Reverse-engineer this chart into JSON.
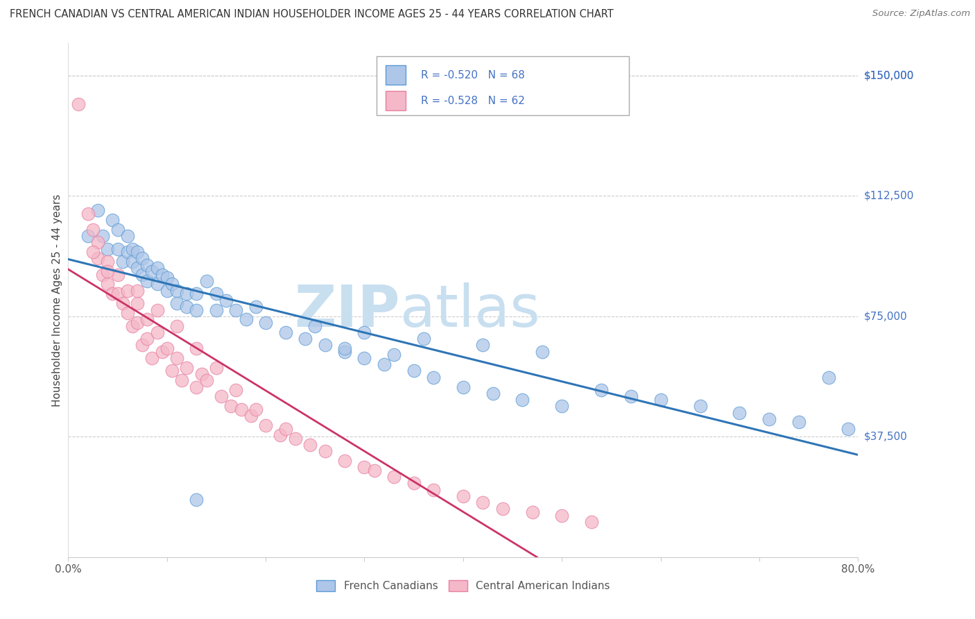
{
  "title": "FRENCH CANADIAN VS CENTRAL AMERICAN INDIAN HOUSEHOLDER INCOME AGES 25 - 44 YEARS CORRELATION CHART",
  "source": "Source: ZipAtlas.com",
  "ylabel": "Householder Income Ages 25 - 44 years",
  "xmin": 0.0,
  "xmax": 0.8,
  "ymin": 0,
  "ymax": 160000,
  "yticks": [
    37500,
    75000,
    112500,
    150000
  ],
  "ytick_labels": [
    "$37,500",
    "$75,000",
    "$112,500",
    "$150,000"
  ],
  "xtick_positions": [
    0.0,
    0.1,
    0.2,
    0.3,
    0.4,
    0.5,
    0.6,
    0.7,
    0.8
  ],
  "xtick_labels": [
    "0.0%",
    "",
    "",
    "",
    "",
    "",
    "",
    "",
    "80.0%"
  ],
  "blue_R": -0.52,
  "blue_N": 68,
  "pink_R": -0.528,
  "pink_N": 62,
  "blue_fill_color": "#aec6e8",
  "pink_fill_color": "#f4b8c8",
  "blue_edge_color": "#5b9bd5",
  "pink_edge_color": "#e87fa0",
  "blue_line_color": "#2e75b6",
  "pink_line_color": "#cc3366",
  "label_color": "#4472c4",
  "legend_label_blue": "French Canadians",
  "legend_label_pink": "Central American Indians",
  "watermark_zip_color": "#c8dff0",
  "watermark_atlas_color": "#c8dff0",
  "blue_scatter_x": [
    0.02,
    0.03,
    0.035,
    0.04,
    0.045,
    0.05,
    0.05,
    0.055,
    0.06,
    0.06,
    0.065,
    0.065,
    0.07,
    0.07,
    0.075,
    0.075,
    0.08,
    0.08,
    0.085,
    0.09,
    0.09,
    0.095,
    0.1,
    0.1,
    0.105,
    0.11,
    0.11,
    0.12,
    0.12,
    0.13,
    0.13,
    0.14,
    0.15,
    0.15,
    0.16,
    0.17,
    0.18,
    0.19,
    0.2,
    0.22,
    0.24,
    0.26,
    0.28,
    0.3,
    0.32,
    0.35,
    0.37,
    0.4,
    0.43,
    0.46,
    0.5,
    0.54,
    0.57,
    0.6,
    0.64,
    0.68,
    0.71,
    0.74,
    0.77,
    0.79,
    0.25,
    0.3,
    0.36,
    0.42,
    0.48,
    0.28,
    0.33,
    0.13
  ],
  "blue_scatter_y": [
    100000,
    108000,
    100000,
    96000,
    105000,
    102000,
    96000,
    92000,
    100000,
    95000,
    96000,
    92000,
    95000,
    90000,
    93000,
    88000,
    91000,
    86000,
    89000,
    90000,
    85000,
    88000,
    87000,
    83000,
    85000,
    83000,
    79000,
    82000,
    78000,
    82000,
    77000,
    86000,
    82000,
    77000,
    80000,
    77000,
    74000,
    78000,
    73000,
    70000,
    68000,
    66000,
    64000,
    62000,
    60000,
    58000,
    56000,
    53000,
    51000,
    49000,
    47000,
    52000,
    50000,
    49000,
    47000,
    45000,
    43000,
    42000,
    56000,
    40000,
    72000,
    70000,
    68000,
    66000,
    64000,
    65000,
    63000,
    18000
  ],
  "pink_scatter_x": [
    0.01,
    0.02,
    0.025,
    0.03,
    0.03,
    0.035,
    0.04,
    0.04,
    0.045,
    0.05,
    0.05,
    0.055,
    0.06,
    0.06,
    0.065,
    0.07,
    0.07,
    0.075,
    0.08,
    0.08,
    0.085,
    0.09,
    0.095,
    0.1,
    0.105,
    0.11,
    0.115,
    0.12,
    0.13,
    0.135,
    0.14,
    0.155,
    0.165,
    0.175,
    0.185,
    0.2,
    0.215,
    0.23,
    0.245,
    0.26,
    0.28,
    0.3,
    0.31,
    0.33,
    0.35,
    0.37,
    0.4,
    0.42,
    0.44,
    0.47,
    0.5,
    0.53,
    0.025,
    0.04,
    0.07,
    0.09,
    0.11,
    0.13,
    0.15,
    0.17,
    0.19,
    0.22
  ],
  "pink_scatter_y": [
    141000,
    107000,
    102000,
    98000,
    93000,
    88000,
    92000,
    85000,
    82000,
    88000,
    82000,
    79000,
    83000,
    76000,
    72000,
    79000,
    73000,
    66000,
    74000,
    68000,
    62000,
    70000,
    64000,
    65000,
    58000,
    62000,
    55000,
    59000,
    53000,
    57000,
    55000,
    50000,
    47000,
    46000,
    44000,
    41000,
    38000,
    37000,
    35000,
    33000,
    30000,
    28000,
    27000,
    25000,
    23000,
    21000,
    19000,
    17000,
    15000,
    14000,
    13000,
    11000,
    95000,
    89000,
    83000,
    77000,
    72000,
    65000,
    59000,
    52000,
    46000,
    40000
  ]
}
